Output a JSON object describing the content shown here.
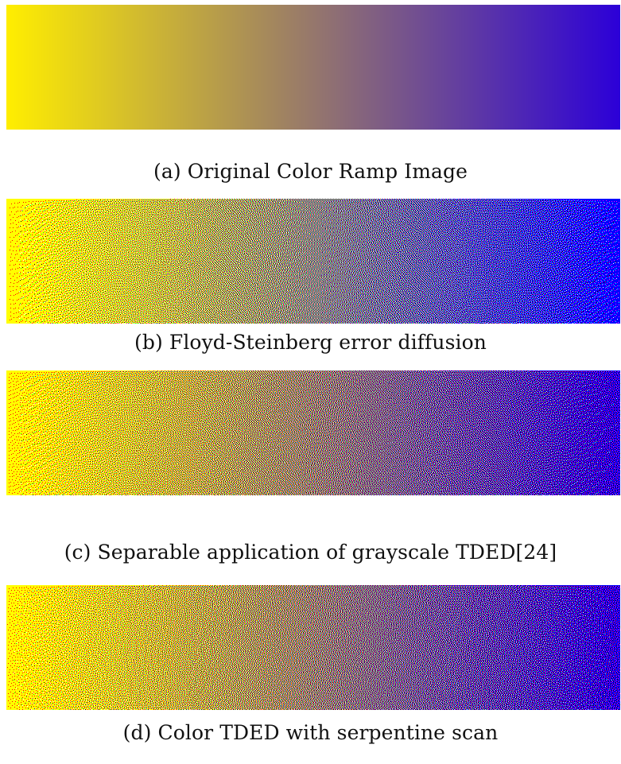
{
  "colors": {
    "ramp_start": "#ffee00",
    "ramp_end": "#2c00d8",
    "page_background": "#ffffff"
  },
  "figures": [
    {
      "id": "a",
      "caption": "(a) Original Color Ramp Image",
      "rendering": "continuous"
    },
    {
      "id": "b",
      "caption": "(b) Floyd-Steinberg error diffusion",
      "rendering": "dithered-two-color"
    },
    {
      "id": "c",
      "caption": "(c) Separable application of grayscale TDED[24]",
      "rendering": "dithered-separable-rgb"
    },
    {
      "id": "d",
      "caption": "(d) Color TDED with serpentine scan",
      "rendering": "dithered-color-serpentine"
    }
  ]
}
